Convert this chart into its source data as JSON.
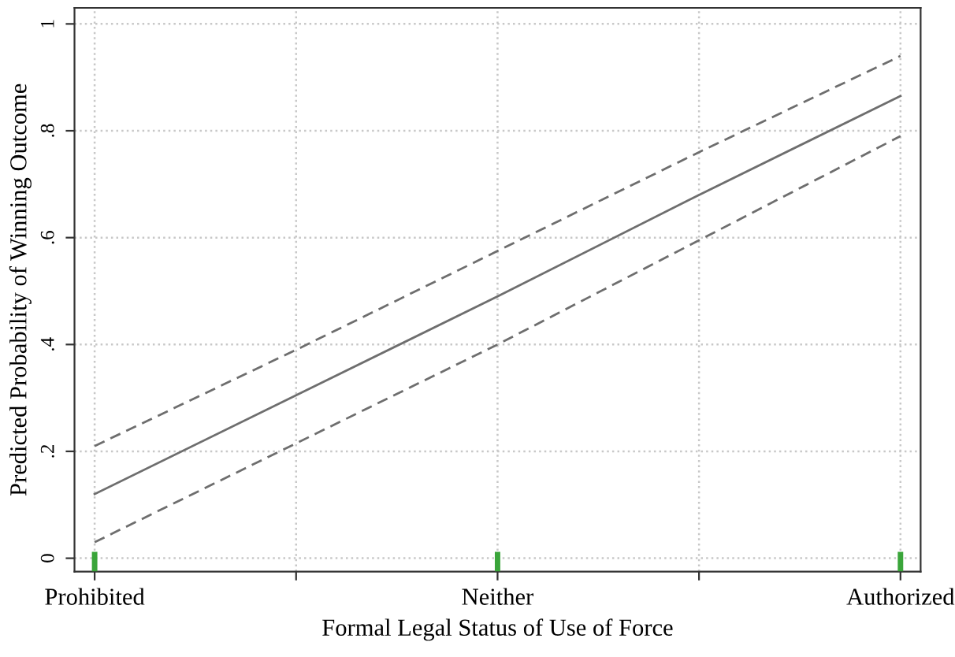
{
  "chart_data": {
    "type": "line",
    "xlabel": "Formal Legal Status of Use of Force",
    "ylabel": "Predicted Probability of Winning Outcome",
    "categories": [
      "Prohibited",
      null,
      "Neither",
      null,
      "Authorized"
    ],
    "series": [
      {
        "color": "#6e6e6e",
        "values": [
          0.12,
          0.305,
          0.49,
          0.68,
          0.865
        ],
        "line_style": "solid"
      },
      {
        "color": "#6e6e6e",
        "values": [
          0.21,
          0.39,
          0.575,
          0.76,
          0.94
        ],
        "line_style": "dashed"
      },
      {
        "color": "#6e6e6e",
        "values": [
          0.03,
          0.215,
          0.4,
          0.595,
          0.79
        ],
        "line_style": "dashed"
      }
    ],
    "ylim": [
      -0.025,
      1.03
    ],
    "yticks": [
      {
        "value": 0,
        "label": "0"
      },
      {
        "value": 0.2,
        "label": ".2"
      },
      {
        "value": 0.4,
        "label": ".4"
      },
      {
        "value": 0.6,
        "label": ".6"
      },
      {
        "value": 0.8,
        "label": ".8"
      },
      {
        "value": 1,
        "label": "1"
      }
    ],
    "grid": true,
    "legend": false
  }
}
